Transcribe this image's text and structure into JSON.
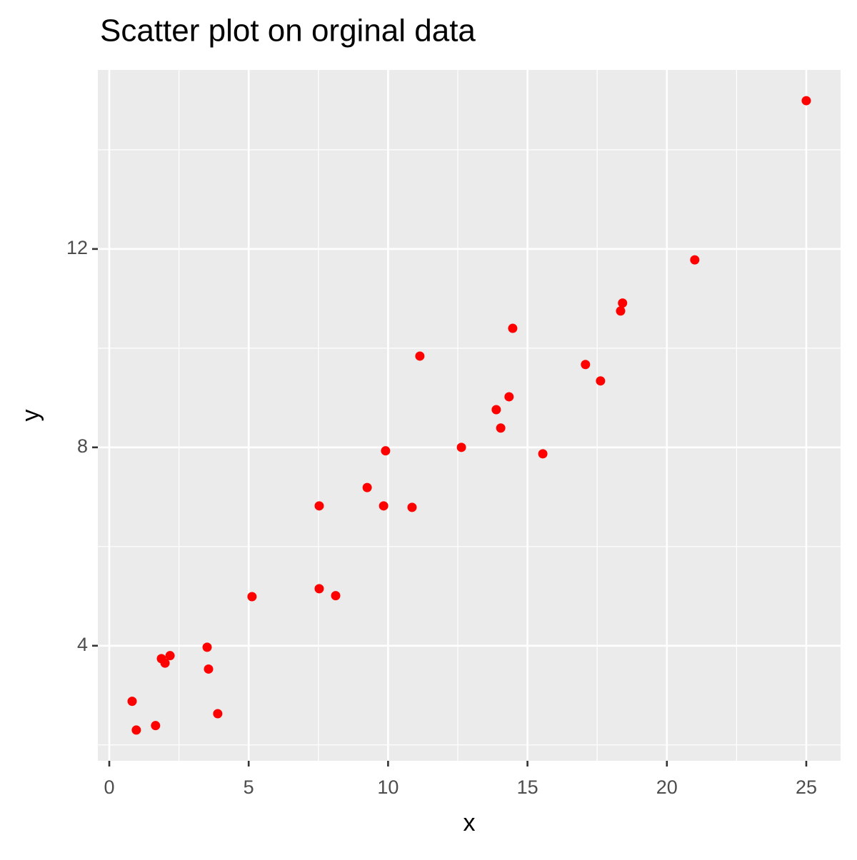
{
  "chart_data": {
    "type": "scatter",
    "title": "Scatter plot on orginal data",
    "x_label": "x",
    "y_label": "y",
    "color": "#ff0000",
    "x": [
      0.82,
      0.97,
      1.66,
      1.87,
      2.0,
      2.18,
      3.51,
      3.56,
      3.89,
      5.12,
      7.53,
      7.53,
      8.12,
      9.25,
      9.84,
      9.91,
      10.86,
      11.14,
      12.63,
      13.88,
      14.04,
      14.34,
      14.47,
      15.55,
      17.08,
      17.62,
      18.34,
      18.41,
      21.0,
      25.0
    ],
    "values": [
      2.88,
      2.3,
      2.39,
      3.74,
      3.65,
      3.8,
      3.97,
      3.53,
      2.63,
      4.99,
      6.82,
      5.15,
      5.01,
      7.19,
      6.82,
      7.93,
      6.79,
      9.84,
      8.0,
      8.76,
      8.39,
      9.02,
      10.4,
      7.87,
      9.67,
      9.34,
      10.75,
      10.91,
      11.78,
      14.99
    ],
    "xlim": [
      -0.41,
      26.23
    ],
    "ylim": [
      1.68,
      15.61
    ],
    "xticks": [
      0,
      5,
      10,
      15,
      20,
      25
    ],
    "yticks": [
      4,
      8,
      12
    ],
    "x_minor_grid": [
      2.5,
      7.5,
      12.5,
      17.5,
      22.5
    ],
    "y_minor_grid": [
      2,
      6,
      10,
      14
    ],
    "grid": true
  }
}
